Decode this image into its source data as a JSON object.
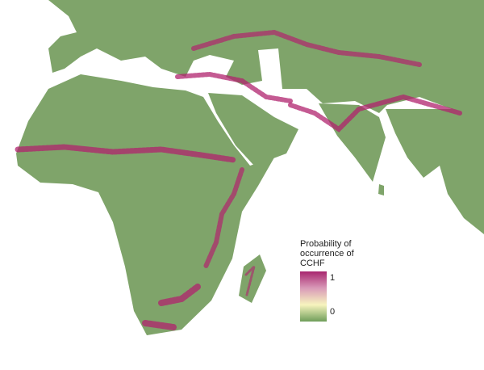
{
  "map": {
    "land_color": "#7fa46a",
    "high_color": "#b0236e",
    "water_color": "#ffffff"
  },
  "legend": {
    "title_lines": [
      "Probability of",
      "occurrence of",
      "CCHF"
    ],
    "max_label": "1",
    "min_label": "0",
    "gradient": [
      "#a8266f",
      "#d99ab8",
      "#f7f4be",
      "#6f9e5a"
    ]
  }
}
